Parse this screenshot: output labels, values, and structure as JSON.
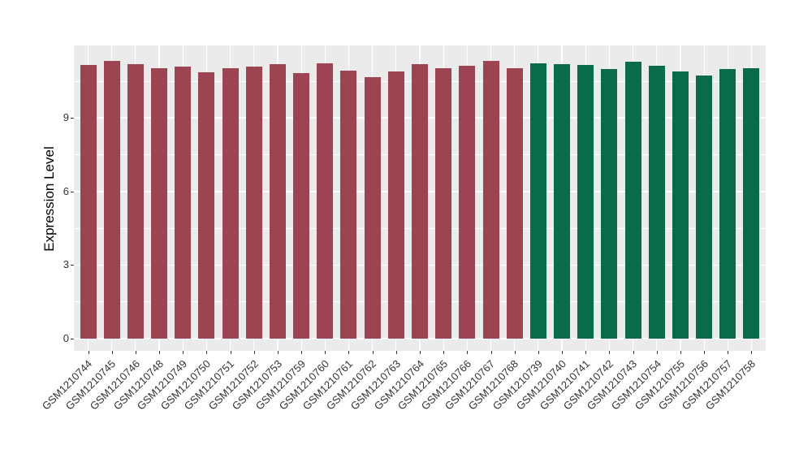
{
  "figure": {
    "background": "#FFFFFF",
    "panel_background": "#EBEBEB",
    "grid_color": "#FFFFFF",
    "tick_mark_color": "#333333",
    "axis_text_color": "#333333",
    "axis_title_color": "#000000"
  },
  "chart_data": {
    "type": "bar",
    "title": "",
    "xlabel": "",
    "ylabel": "Expression Level",
    "yticks": [
      0,
      3,
      6,
      9
    ],
    "minor_yticks": [
      1.5,
      4.5,
      7.5,
      10.5
    ],
    "ylim": [
      -0.5,
      11.95
    ],
    "grid": "white major and minor gridlines on gray panel, vertical gridline at each bar center",
    "legend_position": "none",
    "x_tick_angle_deg": 45,
    "bar_groups": [
      {
        "name": "group-1-red",
        "color": "#9D4452",
        "count": 19
      },
      {
        "name": "group-2-green",
        "color": "#076B4C",
        "count": 10
      }
    ],
    "categories": [
      "GSM1210744",
      "GSM1210745",
      "GSM1210746",
      "GSM1210748",
      "GSM1210749",
      "GSM1210750",
      "GSM1210751",
      "GSM1210752",
      "GSM1210753",
      "GSM1210759",
      "GSM1210760",
      "GSM1210761",
      "GSM1210762",
      "GSM1210763",
      "GSM1210764",
      "GSM1210765",
      "GSM1210766",
      "GSM1210767",
      "GSM1210768",
      "GSM1210739",
      "GSM1210740",
      "GSM1210741",
      "GSM1210742",
      "GSM1210743",
      "GSM1210754",
      "GSM1210755",
      "GSM1210756",
      "GSM1210757",
      "GSM1210758"
    ],
    "values": [
      11.15,
      11.34,
      11.18,
      11.04,
      11.1,
      10.86,
      11.02,
      11.09,
      11.2,
      10.84,
      11.22,
      10.93,
      10.65,
      10.89,
      11.19,
      11.04,
      11.11,
      11.34,
      11.04,
      11.22,
      11.19,
      11.16,
      11.0,
      11.29,
      11.14,
      10.89,
      10.74,
      11.0,
      11.01
    ],
    "group_index": [
      0,
      0,
      0,
      0,
      0,
      0,
      0,
      0,
      0,
      0,
      0,
      0,
      0,
      0,
      0,
      0,
      0,
      0,
      0,
      1,
      1,
      1,
      1,
      1,
      1,
      1,
      1,
      1,
      1
    ]
  }
}
